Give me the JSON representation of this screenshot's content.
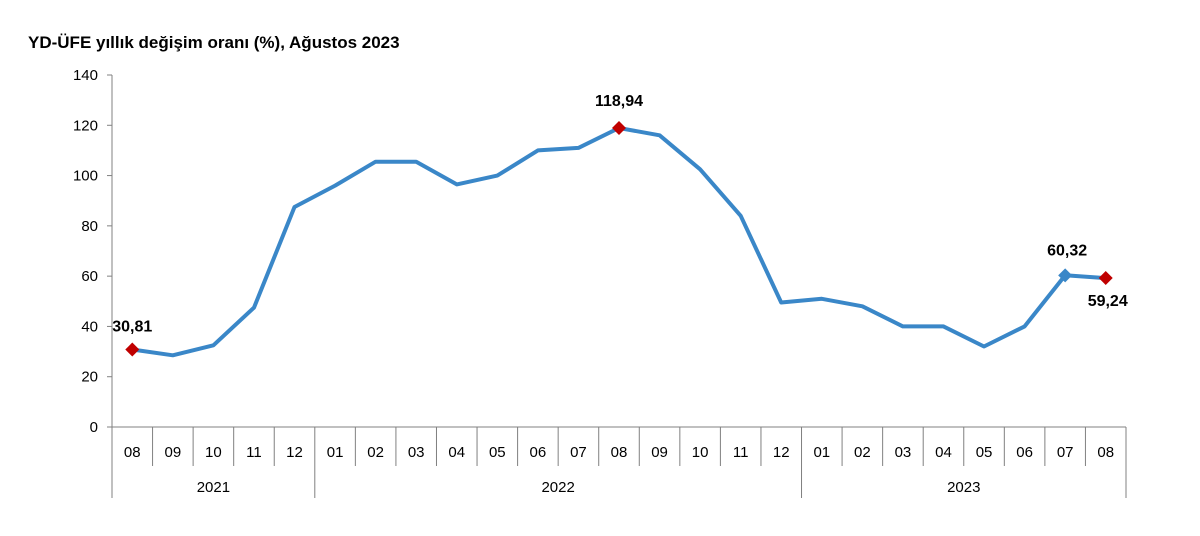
{
  "chart_data": {
    "type": "line",
    "title": "YD-ÜFE yıllık değişim oranı (%), Ağustos 2023",
    "xlabel": "",
    "ylabel": "",
    "ylim": [
      0,
      140
    ],
    "yticks": [
      0,
      20,
      40,
      60,
      80,
      100,
      120,
      140
    ],
    "grid": false,
    "categories": [
      "08",
      "09",
      "10",
      "11",
      "12",
      "01",
      "02",
      "03",
      "04",
      "05",
      "06",
      "07",
      "08",
      "09",
      "10",
      "11",
      "12",
      "01",
      "02",
      "03",
      "04",
      "05",
      "06",
      "07",
      "08"
    ],
    "years": [
      {
        "label": "2021",
        "start": 0,
        "end": 4
      },
      {
        "label": "2022",
        "start": 5,
        "end": 16
      },
      {
        "label": "2023",
        "start": 17,
        "end": 24
      }
    ],
    "series": [
      {
        "values": [
          30.81,
          28.5,
          32.5,
          47.5,
          87.5,
          96.0,
          105.5,
          105.5,
          96.5,
          100.0,
          110.0,
          111.0,
          118.94,
          116.0,
          102.5,
          84.0,
          49.5,
          51.0,
          48.0,
          40.0,
          40.0,
          32.0,
          40.0,
          60.32,
          59.24
        ],
        "color": "#3a87c8"
      }
    ],
    "highlights": [
      {
        "index": 0,
        "label": "30,81",
        "color": "#c00000"
      },
      {
        "index": 12,
        "label": "118,94",
        "color": "#c00000"
      },
      {
        "index": 23,
        "label": "60,32",
        "color": "#3a87c8"
      },
      {
        "index": 24,
        "label": "59,24",
        "color": "#c00000"
      }
    ]
  }
}
